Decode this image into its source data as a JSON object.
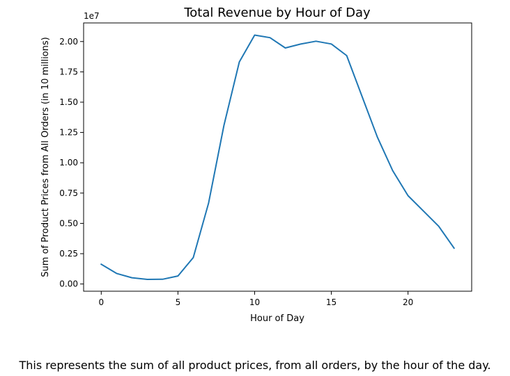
{
  "chart_data": {
    "type": "line",
    "title": "Total Revenue by Hour of Day",
    "xlabel": "Hour of Day",
    "ylabel": "Sum of Product Prices from All Orders (in  10 millions)",
    "offset_label": "1e7",
    "xlim": [
      -1.15,
      24.15
    ],
    "ylim": [
      -0.0595,
      2.1535
    ],
    "xticks": [
      0,
      5,
      10,
      15,
      20
    ],
    "xtick_labels": [
      "0",
      "5",
      "10",
      "15",
      "20"
    ],
    "yticks": [
      0,
      0.25,
      0.5,
      0.75,
      1.0,
      1.25,
      1.5,
      1.75,
      2.0
    ],
    "ytick_labels": [
      "0.00",
      "0.25",
      "0.50",
      "0.75",
      "1.00",
      "1.25",
      "1.50",
      "1.75",
      "2.00"
    ],
    "grid": false,
    "line_color": "#1f77b4",
    "series": [
      {
        "x": [
          0,
          1,
          2,
          3,
          4,
          5,
          6,
          7,
          8,
          9,
          10,
          11,
          12,
          13,
          14,
          15,
          16,
          17,
          18,
          19,
          20,
          21,
          22,
          23
        ],
        "y": [
          0.163,
          0.087,
          0.052,
          0.038,
          0.039,
          0.066,
          0.218,
          0.668,
          1.308,
          1.832,
          2.053,
          2.032,
          1.947,
          1.979,
          2.003,
          1.98,
          1.884,
          1.548,
          1.212,
          0.935,
          0.729,
          0.602,
          0.476,
          0.296
        ]
      }
    ]
  },
  "caption": "This represents the sum of all product prices, from all orders, by the hour of the day."
}
